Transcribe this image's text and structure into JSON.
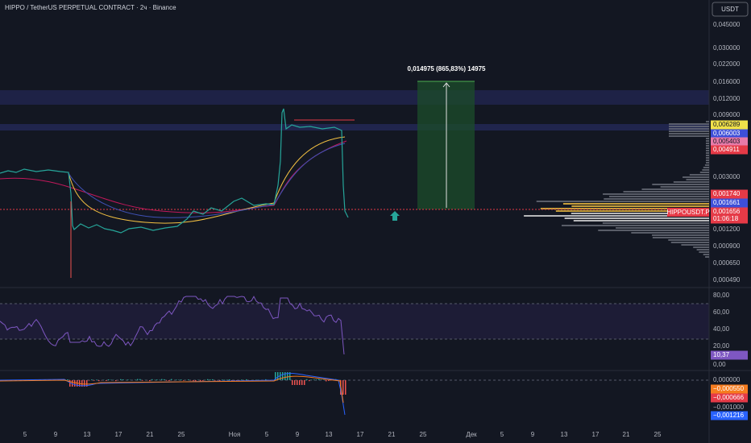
{
  "header": {
    "title": "HIPPO / TetherUS PERPETUAL CONTRACT · 2ч · Binance",
    "currency": "USDT"
  },
  "measure": {
    "label": "0,014975 (865,83%) 14975"
  },
  "symbol_tag": "HIPPOUSDT.P",
  "price_axis": [
    {
      "text": "0,045000"
    },
    {
      "text": "0,030000"
    },
    {
      "text": "0,022000"
    },
    {
      "text": "0,016000"
    },
    {
      "text": "0,012000"
    },
    {
      "text": "0,009000"
    },
    {
      "text": "0,006289",
      "bg": "#f0e04a",
      "fg": "#131722"
    },
    {
      "text": "0,006003",
      "bg": "#3d4fd8",
      "fg": "#ffffff"
    },
    {
      "text": "0,005403",
      "bg": "#e87aa8",
      "fg": "#131722"
    },
    {
      "text": "0,004911",
      "bg": "#e53a47",
      "fg": "#ffffff"
    },
    {
      "text": "0,003000"
    },
    {
      "text": "0,001740",
      "bg": "#e53a47",
      "fg": "#ffffff"
    },
    {
      "text": "0,001661",
      "bg": "#3d4fd8",
      "fg": "#ffffff"
    },
    {
      "text": "0,001656",
      "bg": "#e53a47",
      "fg": "#ffffff"
    },
    {
      "text": "01:06:18",
      "bg": "#e53a47",
      "fg": "#ffffff"
    },
    {
      "text": "0,001200"
    },
    {
      "text": "0,000900"
    },
    {
      "text": "0,000650"
    },
    {
      "text": "0,000490"
    }
  ],
  "rsi_axis": [
    {
      "text": "80,00"
    },
    {
      "text": "60,00"
    },
    {
      "text": "40,00"
    },
    {
      "text": "20,00"
    },
    {
      "text": "10,37",
      "bg": "#7e57c2",
      "fg": "#ffffff"
    },
    {
      "text": "0,00"
    }
  ],
  "macd_axis": [
    {
      "text": "0,000000"
    },
    {
      "text": "−0,000550",
      "bg": "#f57c1f",
      "fg": "#ffffff"
    },
    {
      "text": "−0,000666",
      "bg": "#e53a47",
      "fg": "#ffffff"
    },
    {
      "text": "−0,001000"
    },
    {
      "text": "−0,001216",
      "bg": "#2962ff",
      "fg": "#ffffff"
    }
  ],
  "time_axis": [
    "5",
    "9",
    "13",
    "17",
    "21",
    "25",
    "Ноя",
    "5",
    "9",
    "13",
    "17",
    "21",
    "25",
    "Дек",
    "5",
    "9",
    "13",
    "17",
    "21",
    "25"
  ]
}
